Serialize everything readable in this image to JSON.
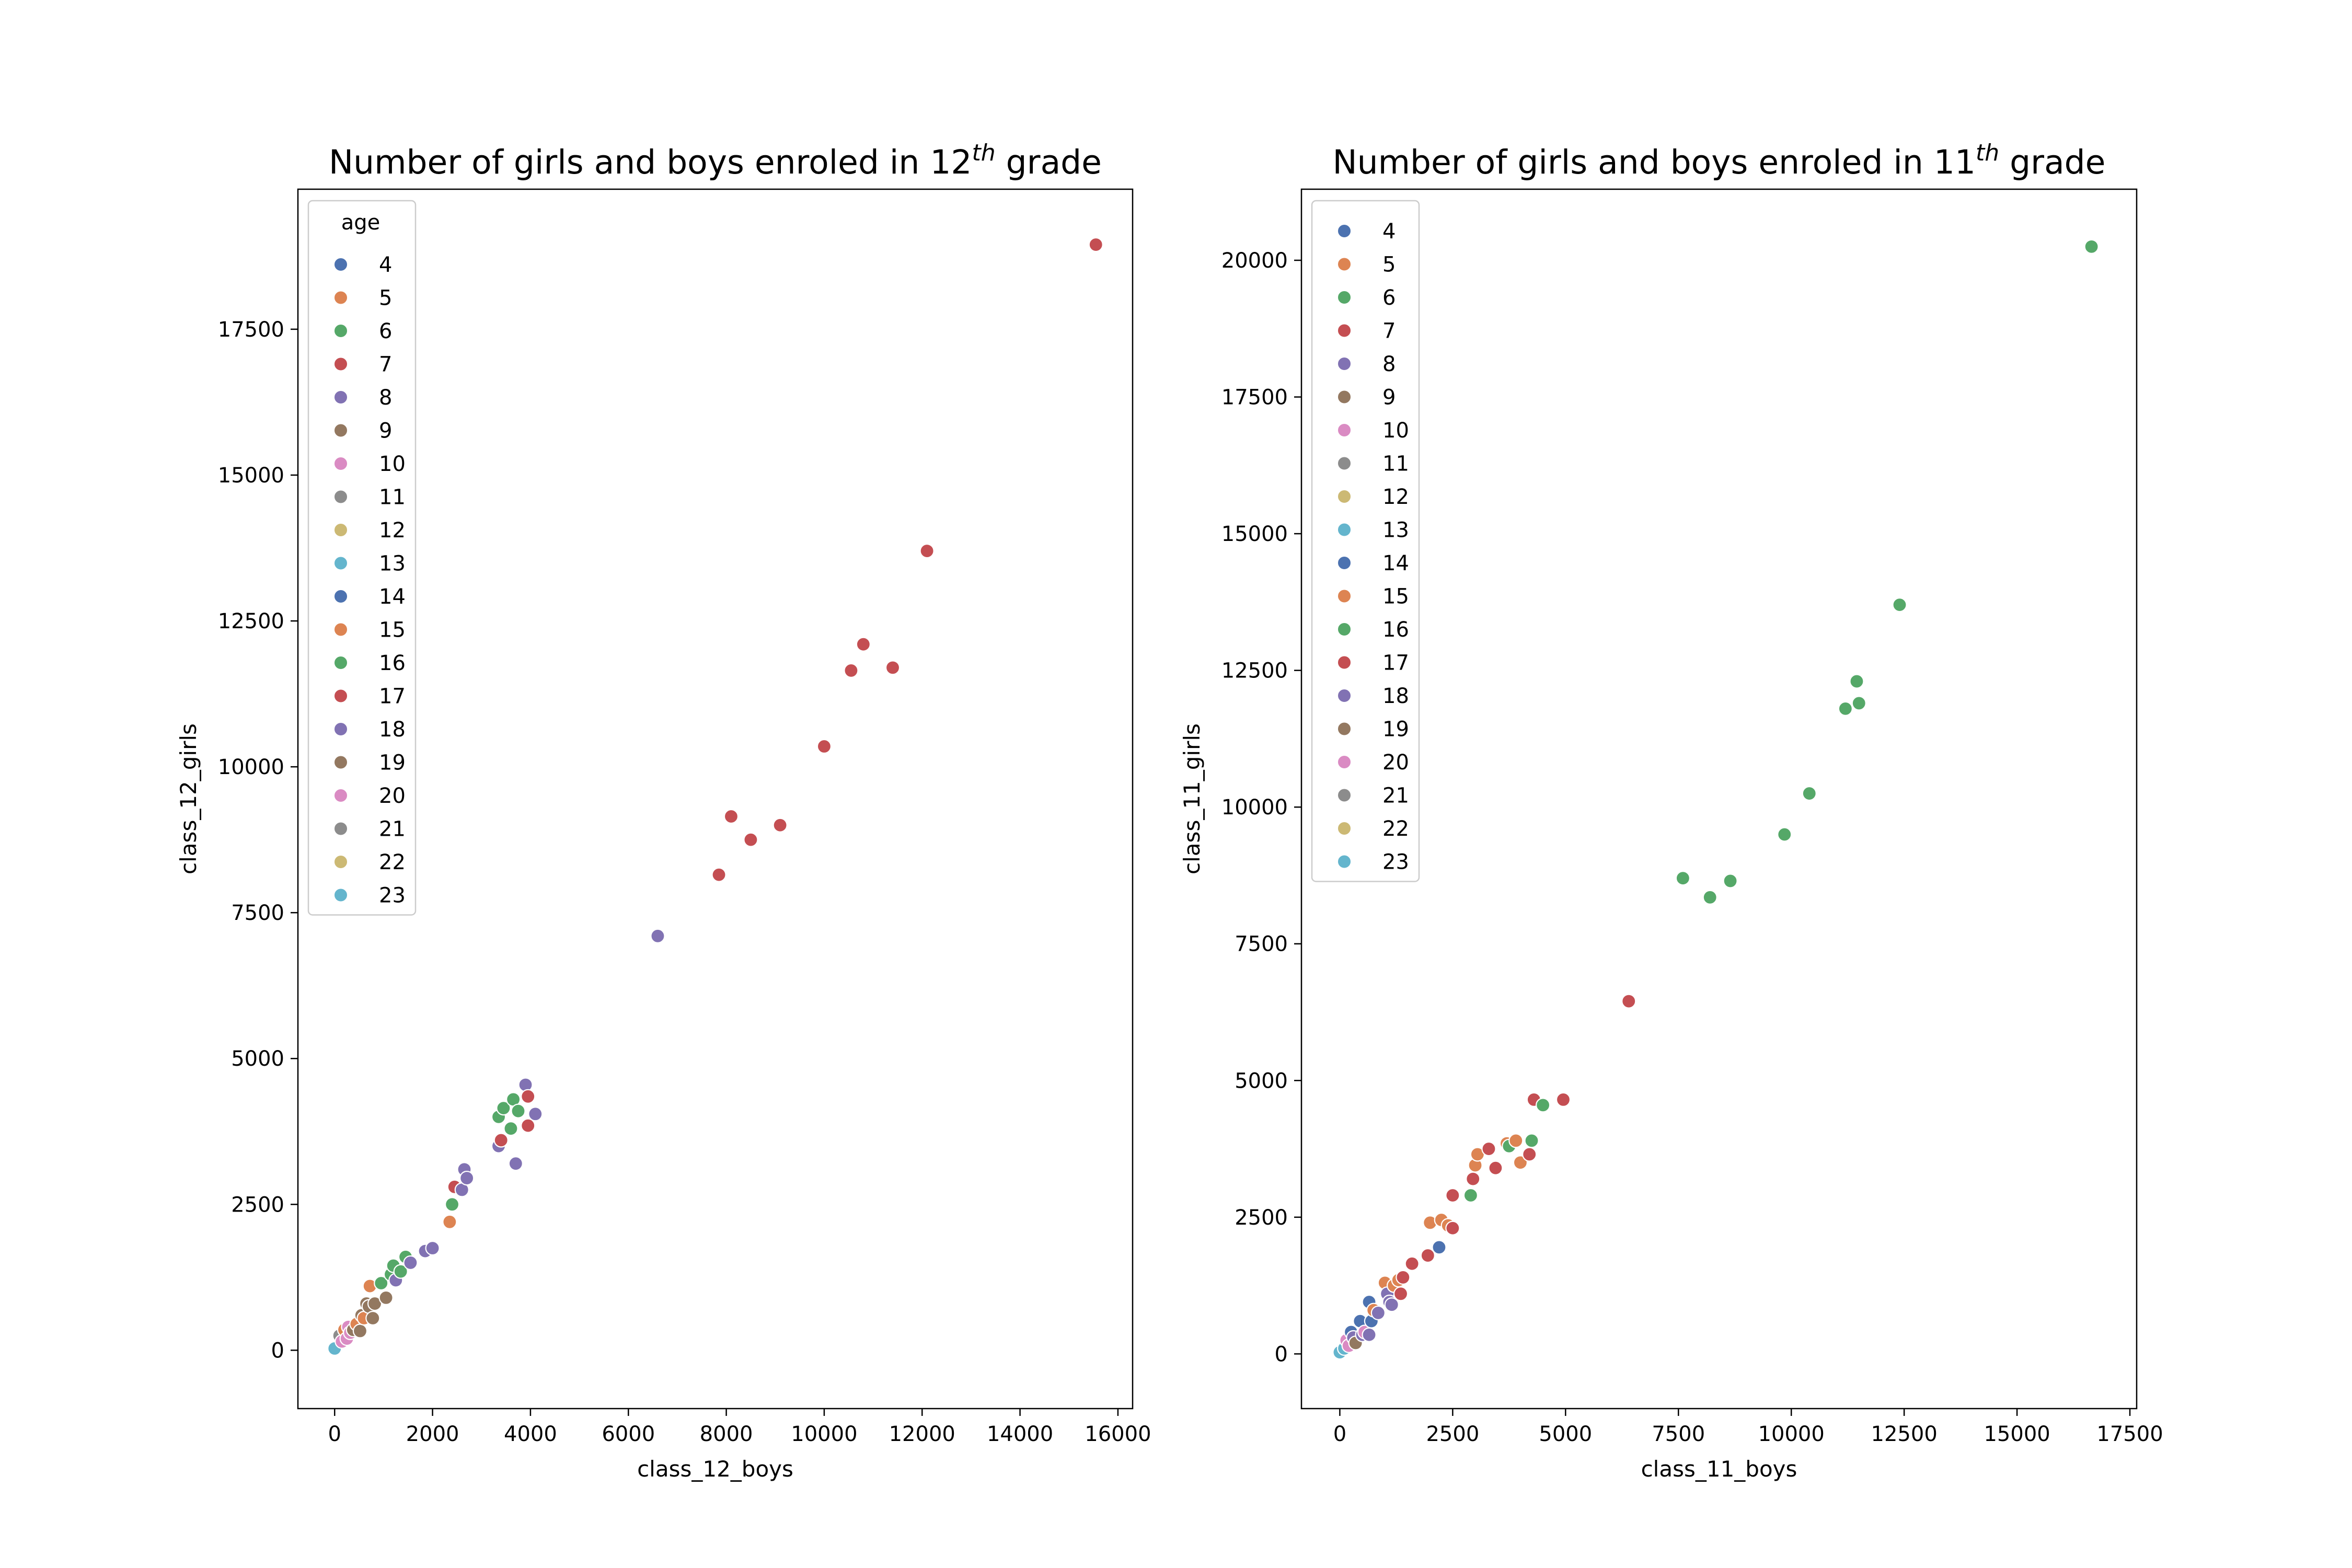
{
  "palette": [
    "#4c72b0",
    "#dd8452",
    "#55a868",
    "#c44e52",
    "#8172b3",
    "#937860",
    "#da8bc3",
    "#8c8c8c",
    "#ccb974",
    "#64b5cd"
  ],
  "chart_data": [
    {
      "type": "scatter",
      "title_prefix": "Number of girls and boys enroled in 12",
      "title_sup": "th",
      "title_suffix": " grade",
      "xlabel": "class_12_boys",
      "ylabel": "class_12_girls",
      "xlim": [
        -750,
        16300
      ],
      "ylim": [
        -1000,
        19900
      ],
      "xticks": [
        0,
        2000,
        4000,
        6000,
        8000,
        10000,
        12000,
        14000,
        16000
      ],
      "xtick_labels": [
        "0",
        "2000",
        "4000",
        "6000",
        "8000",
        "10000",
        "12000",
        "14000",
        "16000"
      ],
      "yticks": [
        0,
        2500,
        5000,
        7500,
        10000,
        12500,
        15000,
        17500
      ],
      "ytick_labels": [
        "0",
        "2500",
        "5000",
        "7500",
        "10000",
        "12500",
        "15000",
        "17500"
      ],
      "legend": {
        "title": "age",
        "placement": "upper-left",
        "labels": [
          "4",
          "5",
          "6",
          "7",
          "8",
          "9",
          "10",
          "11",
          "12",
          "13",
          "14",
          "15",
          "16",
          "17",
          "18",
          "19",
          "20",
          "21",
          "22",
          "23"
        ]
      },
      "points": [
        {
          "x": 0,
          "y": 30,
          "c": 9
        },
        {
          "x": 100,
          "y": 250,
          "c": 7
        },
        {
          "x": 150,
          "y": 150,
          "c": 6
        },
        {
          "x": 200,
          "y": 350,
          "c": 1
        },
        {
          "x": 250,
          "y": 200,
          "c": 6
        },
        {
          "x": 280,
          "y": 400,
          "c": 6
        },
        {
          "x": 320,
          "y": 300,
          "c": 6
        },
        {
          "x": 380,
          "y": 350,
          "c": 5
        },
        {
          "x": 450,
          "y": 450,
          "c": 1
        },
        {
          "x": 520,
          "y": 330,
          "c": 5
        },
        {
          "x": 550,
          "y": 600,
          "c": 5
        },
        {
          "x": 600,
          "y": 550,
          "c": 1
        },
        {
          "x": 650,
          "y": 800,
          "c": 5
        },
        {
          "x": 700,
          "y": 750,
          "c": 5
        },
        {
          "x": 720,
          "y": 1100,
          "c": 1
        },
        {
          "x": 780,
          "y": 550,
          "c": 5
        },
        {
          "x": 820,
          "y": 800,
          "c": 5
        },
        {
          "x": 950,
          "y": 1150,
          "c": 2
        },
        {
          "x": 1050,
          "y": 900,
          "c": 5
        },
        {
          "x": 1150,
          "y": 1300,
          "c": 2
        },
        {
          "x": 1250,
          "y": 1200,
          "c": 4
        },
        {
          "x": 1200,
          "y": 1450,
          "c": 2
        },
        {
          "x": 1350,
          "y": 1350,
          "c": 2
        },
        {
          "x": 1450,
          "y": 1600,
          "c": 2
        },
        {
          "x": 1550,
          "y": 1500,
          "c": 4
        },
        {
          "x": 1850,
          "y": 1700,
          "c": 4
        },
        {
          "x": 2000,
          "y": 1750,
          "c": 4
        },
        {
          "x": 2350,
          "y": 2200,
          "c": 1
        },
        {
          "x": 2400,
          "y": 2500,
          "c": 2
        },
        {
          "x": 2450,
          "y": 2800,
          "c": 3
        },
        {
          "x": 2600,
          "y": 2750,
          "c": 4
        },
        {
          "x": 2650,
          "y": 3100,
          "c": 4
        },
        {
          "x": 2700,
          "y": 2950,
          "c": 4
        },
        {
          "x": 3350,
          "y": 3500,
          "c": 4
        },
        {
          "x": 3400,
          "y": 3600,
          "c": 3
        },
        {
          "x": 3350,
          "y": 4000,
          "c": 2
        },
        {
          "x": 3450,
          "y": 4150,
          "c": 2
        },
        {
          "x": 3600,
          "y": 3800,
          "c": 2
        },
        {
          "x": 3650,
          "y": 4300,
          "c": 2
        },
        {
          "x": 3700,
          "y": 3200,
          "c": 4
        },
        {
          "x": 3750,
          "y": 4100,
          "c": 2
        },
        {
          "x": 3900,
          "y": 4550,
          "c": 4
        },
        {
          "x": 3950,
          "y": 4350,
          "c": 3
        },
        {
          "x": 3950,
          "y": 3850,
          "c": 3
        },
        {
          "x": 4100,
          "y": 4050,
          "c": 4
        },
        {
          "x": 6600,
          "y": 7100,
          "c": 4
        },
        {
          "x": 7850,
          "y": 8150,
          "c": 3
        },
        {
          "x": 8100,
          "y": 9150,
          "c": 3
        },
        {
          "x": 8500,
          "y": 8750,
          "c": 3
        },
        {
          "x": 9100,
          "y": 9000,
          "c": 3
        },
        {
          "x": 10000,
          "y": 10350,
          "c": 3
        },
        {
          "x": 10550,
          "y": 11650,
          "c": 3
        },
        {
          "x": 10800,
          "y": 12100,
          "c": 3
        },
        {
          "x": 11400,
          "y": 11700,
          "c": 3
        },
        {
          "x": 12100,
          "y": 13700,
          "c": 3
        },
        {
          "x": 15550,
          "y": 18950,
          "c": 3
        }
      ]
    },
    {
      "type": "scatter",
      "title_prefix": "Number of girls and boys enroled in 11",
      "title_sup": "th",
      "title_suffix": " grade",
      "xlabel": "class_11_boys",
      "ylabel": "class_11_girls",
      "xlim": [
        -850,
        17650
      ],
      "ylim": [
        -1000,
        21300
      ],
      "xticks": [
        0,
        2500,
        5000,
        7500,
        10000,
        12500,
        15000,
        17500
      ],
      "xtick_labels": [
        "0",
        "2500",
        "5000",
        "7500",
        "10000",
        "12500",
        "15000",
        "17500"
      ],
      "yticks": [
        0,
        2500,
        5000,
        7500,
        10000,
        12500,
        15000,
        17500,
        20000
      ],
      "ytick_labels": [
        "0",
        "2500",
        "5000",
        "7500",
        "10000",
        "12500",
        "15000",
        "17500",
        "20000"
      ],
      "legend": {
        "title": "",
        "placement": "upper-left",
        "labels": [
          "4",
          "5",
          "6",
          "7",
          "8",
          "9",
          "10",
          "11",
          "12",
          "13",
          "14",
          "15",
          "16",
          "17",
          "18",
          "19",
          "20",
          "21",
          "22",
          "23"
        ]
      },
      "points": [
        {
          "x": 0,
          "y": 30,
          "c": 9
        },
        {
          "x": 100,
          "y": 100,
          "c": 9
        },
        {
          "x": 150,
          "y": 250,
          "c": 6
        },
        {
          "x": 200,
          "y": 150,
          "c": 6
        },
        {
          "x": 250,
          "y": 400,
          "c": 0
        },
        {
          "x": 300,
          "y": 300,
          "c": 4
        },
        {
          "x": 350,
          "y": 200,
          "c": 5
        },
        {
          "x": 450,
          "y": 600,
          "c": 0
        },
        {
          "x": 500,
          "y": 350,
          "c": 4
        },
        {
          "x": 550,
          "y": 400,
          "c": 6
        },
        {
          "x": 650,
          "y": 950,
          "c": 0
        },
        {
          "x": 700,
          "y": 600,
          "c": 0
        },
        {
          "x": 750,
          "y": 800,
          "c": 1
        },
        {
          "x": 650,
          "y": 350,
          "c": 4
        },
        {
          "x": 850,
          "y": 750,
          "c": 4
        },
        {
          "x": 1000,
          "y": 1300,
          "c": 1
        },
        {
          "x": 1050,
          "y": 1100,
          "c": 4
        },
        {
          "x": 1100,
          "y": 950,
          "c": 4
        },
        {
          "x": 1150,
          "y": 900,
          "c": 4
        },
        {
          "x": 1200,
          "y": 1250,
          "c": 1
        },
        {
          "x": 1300,
          "y": 1350,
          "c": 1
        },
        {
          "x": 1350,
          "y": 1100,
          "c": 3
        },
        {
          "x": 1400,
          "y": 1400,
          "c": 3
        },
        {
          "x": 1600,
          "y": 1650,
          "c": 3
        },
        {
          "x": 1950,
          "y": 1800,
          "c": 3
        },
        {
          "x": 2000,
          "y": 2400,
          "c": 1
        },
        {
          "x": 2200,
          "y": 1950,
          "c": 0
        },
        {
          "x": 2250,
          "y": 2450,
          "c": 1
        },
        {
          "x": 2400,
          "y": 2350,
          "c": 1
        },
        {
          "x": 2500,
          "y": 2300,
          "c": 3
        },
        {
          "x": 2500,
          "y": 2900,
          "c": 3
        },
        {
          "x": 2900,
          "y": 2900,
          "c": 2
        },
        {
          "x": 2950,
          "y": 3200,
          "c": 3
        },
        {
          "x": 3000,
          "y": 3450,
          "c": 1
        },
        {
          "x": 3050,
          "y": 3650,
          "c": 1
        },
        {
          "x": 3300,
          "y": 3750,
          "c": 3
        },
        {
          "x": 3450,
          "y": 3400,
          "c": 3
        },
        {
          "x": 3700,
          "y": 3850,
          "c": 1
        },
        {
          "x": 3750,
          "y": 3800,
          "c": 2
        },
        {
          "x": 3900,
          "y": 3900,
          "c": 1
        },
        {
          "x": 4000,
          "y": 3500,
          "c": 1
        },
        {
          "x": 4200,
          "y": 3650,
          "c": 3
        },
        {
          "x": 4250,
          "y": 3900,
          "c": 2
        },
        {
          "x": 4300,
          "y": 4650,
          "c": 3
        },
        {
          "x": 4500,
          "y": 4550,
          "c": 2
        },
        {
          "x": 4950,
          "y": 4650,
          "c": 3
        },
        {
          "x": 6400,
          "y": 6450,
          "c": 3
        },
        {
          "x": 7600,
          "y": 8700,
          "c": 2
        },
        {
          "x": 8200,
          "y": 8350,
          "c": 2
        },
        {
          "x": 8650,
          "y": 8650,
          "c": 2
        },
        {
          "x": 9850,
          "y": 9500,
          "c": 2
        },
        {
          "x": 10400,
          "y": 10250,
          "c": 2
        },
        {
          "x": 11200,
          "y": 11800,
          "c": 2
        },
        {
          "x": 11450,
          "y": 12300,
          "c": 2
        },
        {
          "x": 11500,
          "y": 11900,
          "c": 2
        },
        {
          "x": 12400,
          "y": 13700,
          "c": 2
        },
        {
          "x": 16650,
          "y": 20250,
          "c": 2
        }
      ]
    }
  ]
}
